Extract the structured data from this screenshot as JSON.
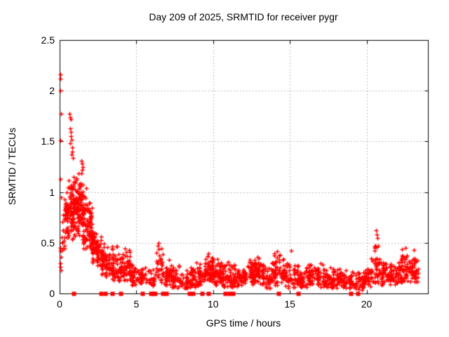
{
  "page": {
    "background": "#ffffff"
  },
  "chart_data": {
    "type": "scatter",
    "title": "Day 209 of 2025, SRMTID for receiver pygr",
    "xlabel": "GPS time / hours",
    "ylabel": "SRMTID / TECUs",
    "xlim": [
      0,
      24
    ],
    "ylim": [
      0,
      2.5
    ],
    "xticks": [
      0,
      5,
      10,
      15,
      20
    ],
    "xtick_labels": [
      "0",
      "5",
      "10",
      "15",
      "20"
    ],
    "yticks": [
      0,
      0.5,
      1,
      1.5,
      2,
      2.5
    ],
    "ytick_labels": [
      "0",
      "0.5",
      "1",
      "1.5",
      "2",
      "2.5"
    ],
    "grid": {
      "show": true,
      "style": "dotted",
      "color": "#aaaaaa",
      "x_at": [
        5,
        10,
        15,
        20
      ],
      "y_at": [
        0.5,
        1,
        1.5,
        2
      ]
    },
    "frame_color": "#000000",
    "legend": "none",
    "marker": {
      "shape": "plus",
      "color": "#ff0000",
      "size": 7
    },
    "zero_marker": {
      "shape": "filled-square",
      "color": "#ff0000",
      "size": 6
    },
    "seed": 1337,
    "x_quantize_hours": 0.01,
    "notable_points": [
      [
        0.05,
        2.16
      ],
      [
        0.06,
        2.12
      ],
      [
        0.05,
        2.0
      ],
      [
        0.08,
        1.77
      ],
      [
        0.03,
        1.51
      ],
      [
        0.04,
        1.13
      ],
      [
        0.07,
        0.95
      ],
      [
        0.03,
        0.45
      ],
      [
        0.05,
        0.42
      ],
      [
        0.08,
        0.36
      ],
      [
        0.04,
        0.3
      ],
      [
        0.06,
        0.26
      ],
      [
        0.09,
        0.23
      ],
      [
        0.65,
        1.77
      ],
      [
        0.7,
        1.74
      ],
      [
        0.72,
        1.72
      ],
      [
        0.7,
        1.63
      ],
      [
        0.73,
        1.59
      ],
      [
        0.75,
        1.55
      ],
      [
        0.78,
        1.52
      ],
      [
        0.7,
        1.48
      ],
      [
        0.8,
        1.44
      ],
      [
        0.82,
        1.4
      ],
      [
        0.76,
        1.37
      ],
      [
        0.85,
        1.34
      ],
      [
        1.42,
        1.31
      ],
      [
        1.48,
        1.28
      ],
      [
        1.52,
        1.25
      ],
      [
        1.45,
        1.22
      ],
      [
        6.45,
        0.5
      ],
      [
        6.4,
        0.47
      ],
      [
        15.1,
        0.42
      ],
      [
        20.62,
        0.62
      ],
      [
        20.66,
        0.58
      ],
      [
        20.7,
        0.55
      ],
      [
        22.55,
        0.45
      ],
      [
        23.1,
        0.43
      ]
    ],
    "zero_marker_x": [
      0.91,
      2.7,
      2.95,
      3.43,
      3.96,
      5.41,
      5.92,
      6.08,
      6.22,
      6.72,
      6.95,
      8.45,
      8.7,
      9.3,
      9.68,
      10.8,
      11.05,
      11.3,
      14.26,
      15.54,
      18.97,
      19.43
    ],
    "band_profile": [
      [
        0.1,
        0.35,
        10,
        0.25,
        0.9,
        1.1
      ],
      [
        0.3,
        0.6,
        42,
        0.4,
        1.12,
        0.95
      ],
      [
        0.6,
        0.9,
        55,
        0.45,
        1.18,
        0.95
      ],
      [
        0.9,
        1.2,
        58,
        0.5,
        1.25,
        0.95
      ],
      [
        1.2,
        1.5,
        58,
        0.45,
        1.28,
        1.0
      ],
      [
        1.5,
        1.8,
        52,
        0.42,
        1.1,
        1.1
      ],
      [
        1.8,
        2.1,
        48,
        0.38,
        1.0,
        1.15
      ],
      [
        2.1,
        2.4,
        45,
        0.3,
        0.8,
        1.2
      ],
      [
        2.4,
        2.7,
        35,
        0.25,
        0.62,
        1.2
      ],
      [
        2.7,
        3.0,
        30,
        0.18,
        0.55,
        1.3
      ],
      [
        3.0,
        3.4,
        35,
        0.15,
        0.5,
        1.35
      ],
      [
        3.4,
        3.8,
        40,
        0.12,
        0.55,
        1.35
      ],
      [
        3.8,
        4.2,
        35,
        0.1,
        0.45,
        1.4
      ],
      [
        4.2,
        4.7,
        45,
        0.12,
        0.52,
        1.35
      ],
      [
        4.7,
        5.2,
        35,
        0.08,
        0.32,
        1.4
      ],
      [
        5.2,
        5.6,
        25,
        0.08,
        0.33,
        1.4
      ],
      [
        5.6,
        6.3,
        28,
        0.06,
        0.28,
        1.4
      ],
      [
        6.3,
        6.7,
        30,
        0.1,
        0.5,
        1.3
      ],
      [
        6.7,
        7.3,
        40,
        0.08,
        0.36,
        1.4
      ],
      [
        7.3,
        7.9,
        40,
        0.05,
        0.3,
        1.4
      ],
      [
        7.9,
        8.5,
        40,
        0.04,
        0.25,
        1.4
      ],
      [
        8.5,
        9.1,
        45,
        0.05,
        0.33,
        1.4
      ],
      [
        9.1,
        9.6,
        40,
        0.07,
        0.38,
        1.4
      ],
      [
        9.6,
        10.1,
        55,
        0.1,
        0.43,
        1.3
      ],
      [
        10.1,
        10.6,
        50,
        0.08,
        0.38,
        1.3
      ],
      [
        10.6,
        11.1,
        40,
        0.06,
        0.33,
        1.4
      ],
      [
        11.1,
        11.6,
        35,
        0.05,
        0.33,
        1.4
      ],
      [
        11.6,
        12.2,
        45,
        0.07,
        0.36,
        1.4
      ],
      [
        12.2,
        12.7,
        45,
        0.08,
        0.38,
        1.3
      ],
      [
        12.7,
        13.2,
        45,
        0.08,
        0.42,
        1.3
      ],
      [
        13.2,
        13.8,
        45,
        0.05,
        0.3,
        1.4
      ],
      [
        13.8,
        14.4,
        50,
        0.08,
        0.45,
        1.3
      ],
      [
        14.4,
        15.0,
        45,
        0.05,
        0.38,
        1.4
      ],
      [
        15.0,
        15.6,
        35,
        0.05,
        0.3,
        1.4
      ],
      [
        15.6,
        16.2,
        40,
        0.05,
        0.3,
        1.4
      ],
      [
        16.2,
        16.8,
        45,
        0.07,
        0.36,
        1.4
      ],
      [
        16.8,
        17.4,
        45,
        0.06,
        0.32,
        1.4
      ],
      [
        17.4,
        18.0,
        45,
        0.05,
        0.3,
        1.4
      ],
      [
        18.0,
        18.6,
        40,
        0.05,
        0.28,
        1.4
      ],
      [
        18.6,
        19.2,
        35,
        0.04,
        0.26,
        1.45
      ],
      [
        19.2,
        19.8,
        35,
        0.03,
        0.25,
        1.45
      ],
      [
        19.8,
        20.3,
        40,
        0.06,
        0.3,
        1.4
      ],
      [
        20.3,
        20.9,
        45,
        0.1,
        0.58,
        1.25
      ],
      [
        20.9,
        21.5,
        45,
        0.08,
        0.35,
        1.3
      ],
      [
        21.5,
        22.1,
        45,
        0.08,
        0.32,
        1.35
      ],
      [
        22.1,
        22.7,
        50,
        0.1,
        0.45,
        1.25
      ],
      [
        22.7,
        23.4,
        50,
        0.08,
        0.42,
        1.3
      ]
    ]
  }
}
